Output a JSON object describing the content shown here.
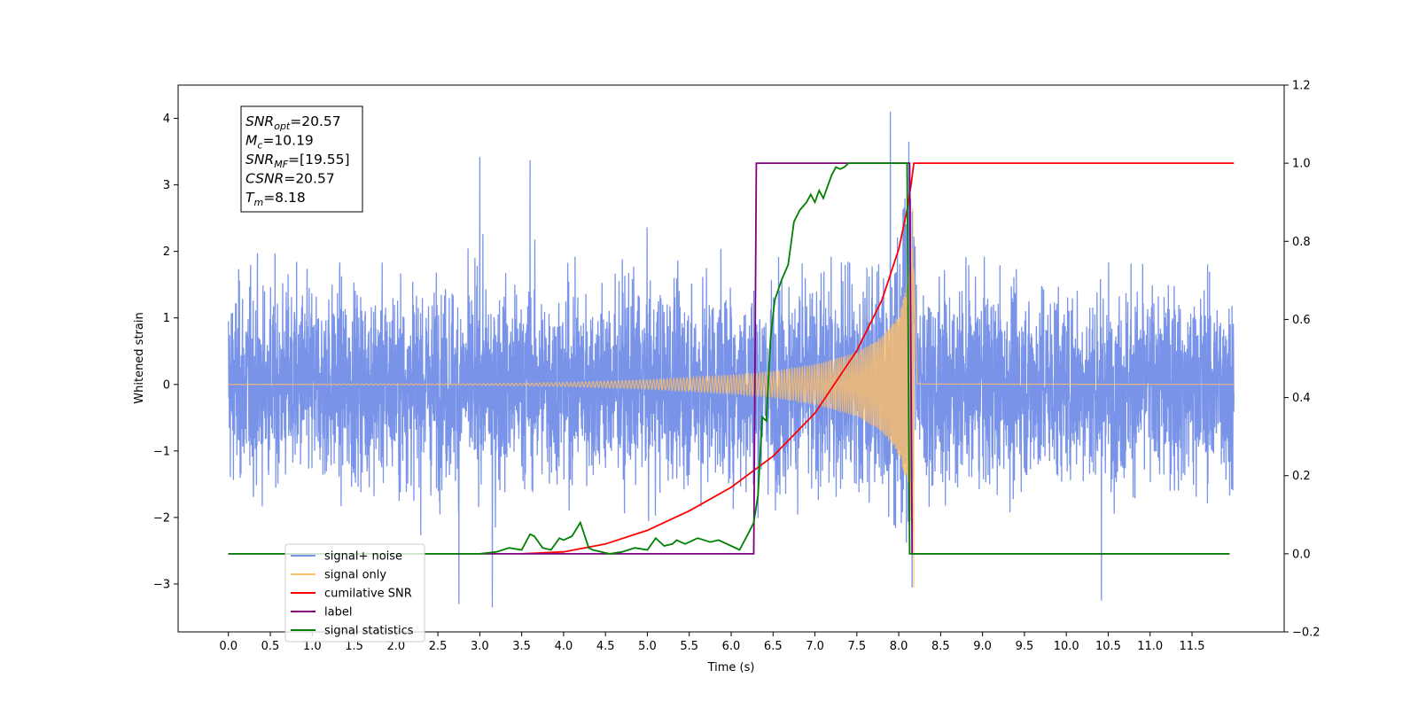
{
  "chart_data": {
    "type": "line",
    "xlabel": "Time (s)",
    "ylabel": "Whitened strain",
    "xlim": [
      -0.6,
      12.6
    ],
    "ylim": [
      -3.72,
      4.5
    ],
    "y2lim": [
      -0.2,
      1.2
    ],
    "xticks": [
      0.0,
      0.5,
      1.0,
      1.5,
      2.0,
      2.5,
      3.0,
      3.5,
      4.0,
      4.5,
      5.0,
      5.5,
      6.0,
      6.5,
      7.0,
      7.5,
      8.0,
      8.5,
      9.0,
      9.5,
      10.0,
      10.5,
      11.0,
      11.5
    ],
    "xtick_labels": [
      "0.0",
      "0.5",
      "1.0",
      "1.5",
      "2.0",
      "2.5",
      "3.0",
      "3.5",
      "4.0",
      "4.5",
      "5.0",
      "5.5",
      "6.0",
      "6.5",
      "7.0",
      "7.5",
      "8.0",
      "8.5",
      "9.0",
      "9.5",
      "10.0",
      "10.5",
      "11.0",
      "11.5"
    ],
    "yticks": [
      -3,
      -2,
      -1,
      0,
      1,
      2,
      3,
      4
    ],
    "ytick_labels": [
      "−3",
      "−2",
      "−1",
      "0",
      "1",
      "2",
      "3",
      "4"
    ],
    "y2ticks": [
      -0.2,
      0.0,
      0.2,
      0.4,
      0.6,
      0.8,
      1.0,
      1.2
    ],
    "y2tick_labels": [
      "−0.2",
      "0.0",
      "0.2",
      "0.4",
      "0.6",
      "0.8",
      "1.0",
      "1.2"
    ],
    "grid": false,
    "legend_placement": "lower-left",
    "annotation": {
      "lines": [
        {
          "symbol": "SNR",
          "sub": "opt",
          "value": "=20.57"
        },
        {
          "symbol": "M",
          "sub": "c",
          "value": "=10.19"
        },
        {
          "symbol": "SNR",
          "sub": "MF",
          "value": "=[19.55]"
        },
        {
          "symbol": "CSNR",
          "sub": "",
          "value": "=20.57"
        },
        {
          "symbol": "T",
          "sub": "m",
          "value": "=8.18"
        }
      ]
    },
    "noise": {
      "t_start": 0.0,
      "t_end": 12.0,
      "typical_amplitude": 1.3,
      "peak_values": [
        4.1,
        3.65,
        3.42,
        3.37,
        -3.35,
        -3.3,
        -3.25
      ]
    },
    "merger_time": 8.18,
    "series": [
      {
        "name": "signal+ noise",
        "color": "#7893e8",
        "axis": "left"
      },
      {
        "name": "signal only",
        "color": "#ffbf66",
        "axis": "left",
        "envelope": {
          "t": [
            0,
            3.0,
            4.0,
            5.0,
            6.0,
            6.5,
            7.0,
            7.5,
            7.8,
            8.0,
            8.1,
            8.15,
            8.18,
            8.22,
            8.3,
            12.0
          ],
          "amp": [
            0.002,
            0.01,
            0.03,
            0.07,
            0.14,
            0.2,
            0.3,
            0.48,
            0.72,
            1.05,
            1.5,
            2.1,
            3.1,
            0.02,
            0.01,
            0.0
          ]
        },
        "merger_spike": -3.05
      },
      {
        "name": "cumilative SNR",
        "color": "#ff0000",
        "axis": "right",
        "x": [
          3.5,
          4.0,
          4.5,
          5.0,
          5.5,
          6.0,
          6.5,
          7.0,
          7.5,
          7.8,
          8.0,
          8.1,
          8.15,
          8.18,
          12.0
        ],
        "y": [
          0.0,
          0.005,
          0.025,
          0.06,
          0.11,
          0.17,
          0.25,
          0.36,
          0.52,
          0.65,
          0.78,
          0.88,
          0.95,
          1.0,
          1.0
        ]
      },
      {
        "name": "label",
        "color": "#800080",
        "axis": "right",
        "x": [
          0.0,
          6.27,
          6.3,
          8.13,
          8.16,
          11.95
        ],
        "y": [
          0.0,
          0.0,
          1.0,
          1.0,
          0.0,
          0.0
        ]
      },
      {
        "name": "signal statistics",
        "color": "#008000",
        "axis": "right",
        "x": [
          0.0,
          3.0,
          3.2,
          3.35,
          3.5,
          3.6,
          3.65,
          3.75,
          3.85,
          3.95,
          4.0,
          4.1,
          4.2,
          4.3,
          4.35,
          4.45,
          4.55,
          4.7,
          4.85,
          5.0,
          5.1,
          5.2,
          5.3,
          5.35,
          5.45,
          5.6,
          5.75,
          5.85,
          6.0,
          6.1,
          6.2,
          6.27,
          6.32,
          6.37,
          6.42,
          6.47,
          6.52,
          6.6,
          6.68,
          6.75,
          6.82,
          6.9,
          6.95,
          7.0,
          7.05,
          7.1,
          7.15,
          7.2,
          7.25,
          7.3,
          7.35,
          7.4,
          7.5,
          7.6,
          8.1,
          8.13,
          8.18,
          11.95
        ],
        "y": [
          0.0,
          0.0,
          0.005,
          0.015,
          0.01,
          0.05,
          0.045,
          0.015,
          0.01,
          0.04,
          0.035,
          0.045,
          0.08,
          0.015,
          0.01,
          0.005,
          0.0,
          0.005,
          0.015,
          0.01,
          0.04,
          0.02,
          0.025,
          0.035,
          0.025,
          0.04,
          0.03,
          0.035,
          0.02,
          0.01,
          0.05,
          0.08,
          0.15,
          0.35,
          0.34,
          0.55,
          0.65,
          0.7,
          0.74,
          0.85,
          0.88,
          0.9,
          0.92,
          0.9,
          0.93,
          0.91,
          0.94,
          0.97,
          0.99,
          0.985,
          0.99,
          1.0,
          1.0,
          1.0,
          1.0,
          0.0,
          0.0,
          0.0
        ]
      }
    ]
  }
}
